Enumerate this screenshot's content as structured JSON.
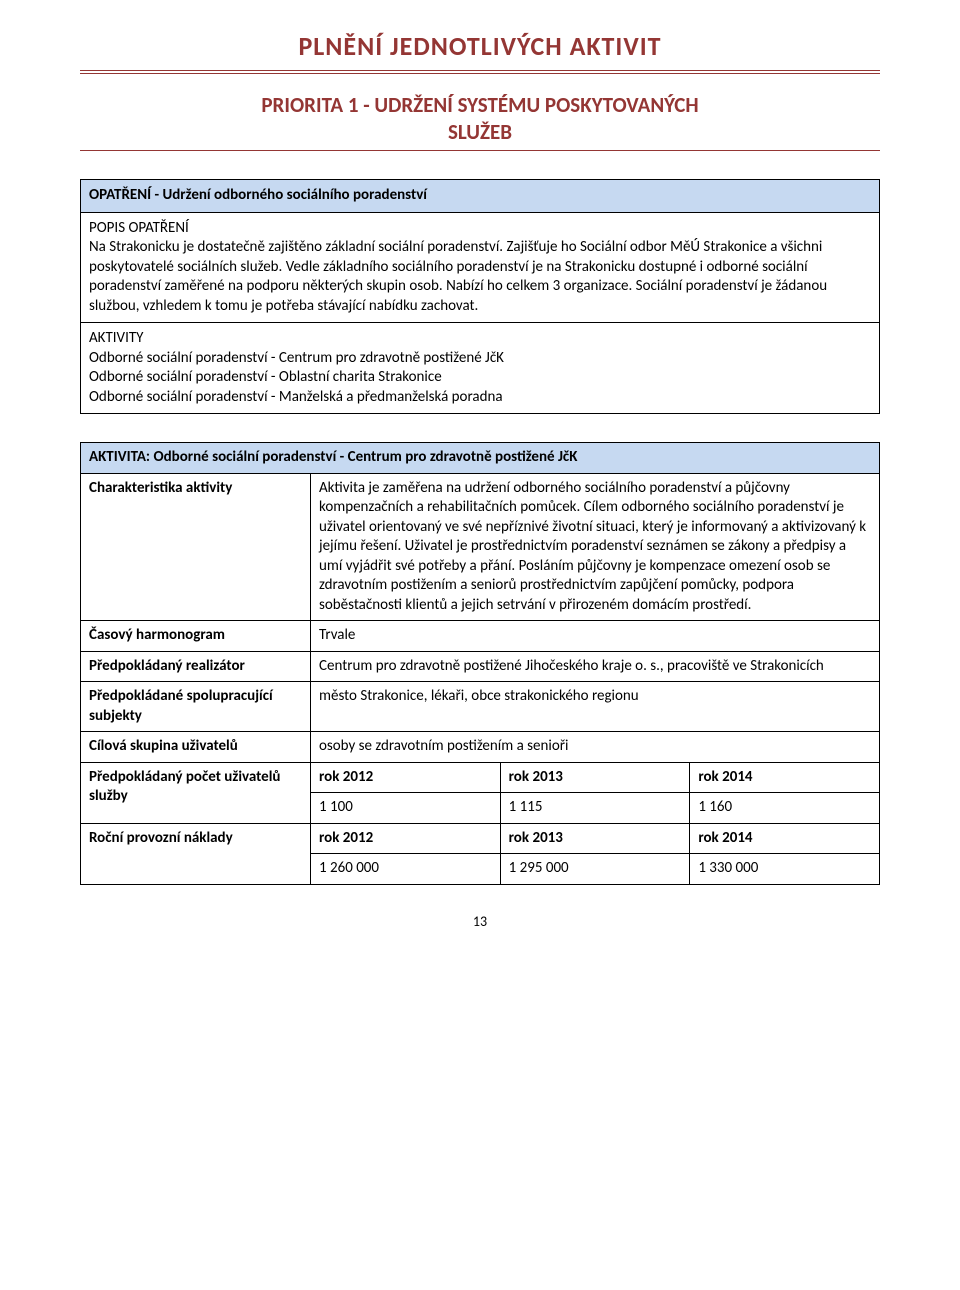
{
  "colors": {
    "title_color": "#943634",
    "header_bg": "#c6d9f1",
    "border": "#000000",
    "page_bg": "#ffffff"
  },
  "typography": {
    "body_font": "Calibri",
    "body_size_pt": 11,
    "title_size_pt": 20,
    "subtitle_size_pt": 16
  },
  "main_title": "PLNĚNÍ JEDNOTLIVÝCH AKTIVIT",
  "sub_title_line1": "PRIORITA 1 - UDRŽENÍ SYSTÉMU POSKYTOVANÝCH",
  "sub_title_line2": "SLUŽEB",
  "opatreni_header": "OPATŘENÍ - Udržení odborného sociálního poradenství",
  "popis_label": "POPIS OPATŘENÍ",
  "popis_text": "Na Strakonicku je dostatečně zajištěno základní sociální poradenství. Zajišťuje ho Sociální odbor MěÚ Strakonice a všichni poskytovatelé sociálních služeb. Vedle základního sociálního poradenství je na Strakonicku dostupné i odborné sociální poradenství zaměřené na podporu některých skupin osob. Nabízí ho celkem 3 organizace. Sociální poradenství je žádanou službou, vzhledem k tomu je potřeba stávající nabídku zachovat.",
  "aktivity_label": "AKTIVITY",
  "aktivity_items": {
    "a1": "Odborné sociální poradenství - Centrum pro zdravotně postižené JčK",
    "a2": "Odborné sociální poradenství - Oblastní charita Strakonice",
    "a3": "Odborné sociální poradenství - Manželská a předmanželská poradna"
  },
  "detail": {
    "header": "AKTIVITA: Odborné sociální poradenství - Centrum pro zdravotně postižené JčK",
    "rows": {
      "charakt_label": "Charakteristika aktivity",
      "charakt_text": "Aktivita je zaměřena na udržení odborného sociálního poradenství a půjčovny kompenzačních a rehabilitačních pomůcek. Cílem odborného sociálního poradenství je uživatel orientovaný ve své nepříznivé životní situaci, který je informovaný a aktivizovaný k jejímu řešení. Uživatel je prostřednictvím poradenství seznámen se zákony a předpisy a umí vyjádřit své potřeby a přání. Posláním půjčovny je kompenzace omezení osob se zdravotním postižením a seniorů prostřednictvím zapůjčení pomůcky, podpora soběstačnosti klientů a jejich setrvání v  přirozeném domácím prostředí.",
      "casovy_label": "Časový harmonogram",
      "casovy_val": "Trvale",
      "realizator_label": "Předpokládaný realizátor",
      "realizator_val": "Centrum pro zdravotně postižené Jihočeského kraje o. s., pracoviště ve Strakonicích",
      "spolu_label": "Předpokládané spolupracující subjekty",
      "spolu_val": "město Strakonice, lékaři, obce strakonického regionu",
      "cilova_label": "Cílová skupina uživatelů",
      "cilova_val": "osoby se zdravotním postižením a senioři",
      "pocet_label": "Předpokládaný počet uživatelů služby",
      "roky": {
        "r1": "rok 2012",
        "r2": "rok 2013",
        "r3": "rok 2014"
      },
      "pocty": {
        "p1": "1 100",
        "p2": "1 115",
        "p3": "1 160"
      },
      "naklady_label": "Roční provozní náklady",
      "naklady_roky": {
        "r1": "rok 2012",
        "r2": "rok 2013",
        "r3": "rok 2014"
      },
      "naklady_vals": {
        "v1": "1 260 000",
        "v2": "1 295 000",
        "v3": "1 330 000"
      }
    }
  },
  "page_number": "13"
}
